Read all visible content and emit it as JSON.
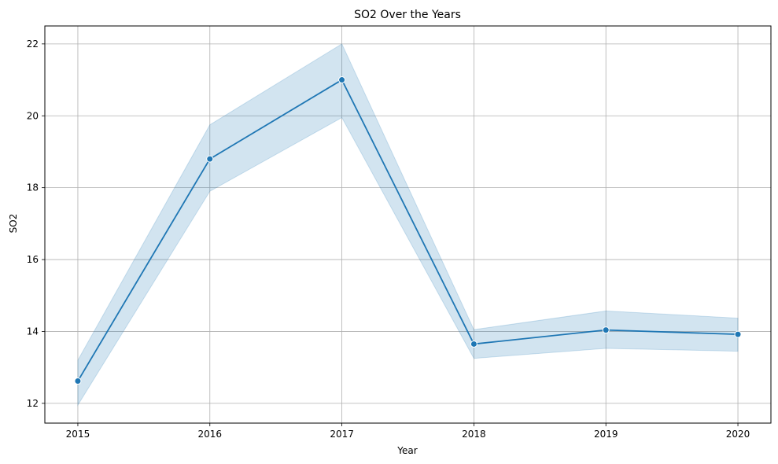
{
  "chart_data": {
    "type": "line",
    "title": "SO2 Over the Years",
    "xlabel": "Year",
    "ylabel": "SO2",
    "x": [
      2015,
      2016,
      2017,
      2018,
      2019,
      2020
    ],
    "xticks": [
      "2015",
      "2016",
      "2017",
      "2018",
      "2019",
      "2020"
    ],
    "yticks": [
      "12",
      "14",
      "16",
      "18",
      "20",
      "22"
    ],
    "xlim": [
      2014.75,
      2020.25
    ],
    "ylim": [
      11.45,
      22.5
    ],
    "grid": true,
    "series": [
      {
        "values": [
          12.62,
          18.8,
          21.0,
          13.65,
          14.04,
          13.92
        ],
        "ci_lower": [
          11.95,
          17.9,
          19.95,
          13.25,
          13.53,
          13.45
        ],
        "ci_upper": [
          13.2,
          19.75,
          22.0,
          14.05,
          14.57,
          14.37
        ],
        "color": "#1f77b4",
        "band_color": "#1f77b4",
        "marker": "circle"
      }
    ]
  }
}
